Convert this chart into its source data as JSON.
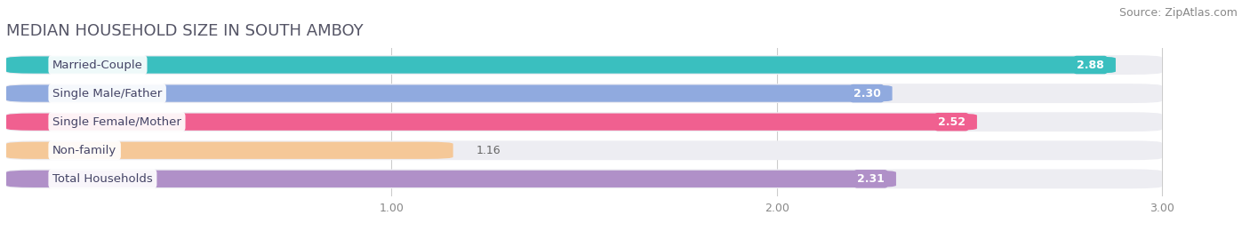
{
  "title": "MEDIAN HOUSEHOLD SIZE IN SOUTH AMBOY",
  "source": "Source: ZipAtlas.com",
  "categories": [
    "Married-Couple",
    "Single Male/Father",
    "Single Female/Mother",
    "Non-family",
    "Total Households"
  ],
  "values": [
    2.88,
    2.3,
    2.52,
    1.16,
    2.31
  ],
  "bar_colors": [
    "#3abfbf",
    "#90aadf",
    "#f06090",
    "#f5c898",
    "#b090c8"
  ],
  "background_color": "#ffffff",
  "bar_bg_color": "#ededf2",
  "xlim": [
    0,
    3.18
  ],
  "xmin": 0,
  "xmax": 3.0,
  "xticks": [
    1.0,
    2.0,
    3.0
  ],
  "label_color": "#ffffff",
  "title_color": "#555566",
  "source_color": "#888888",
  "title_fontsize": 13,
  "source_fontsize": 9,
  "bar_label_fontsize": 9,
  "category_fontsize": 9.5,
  "category_text_color": "#444466"
}
